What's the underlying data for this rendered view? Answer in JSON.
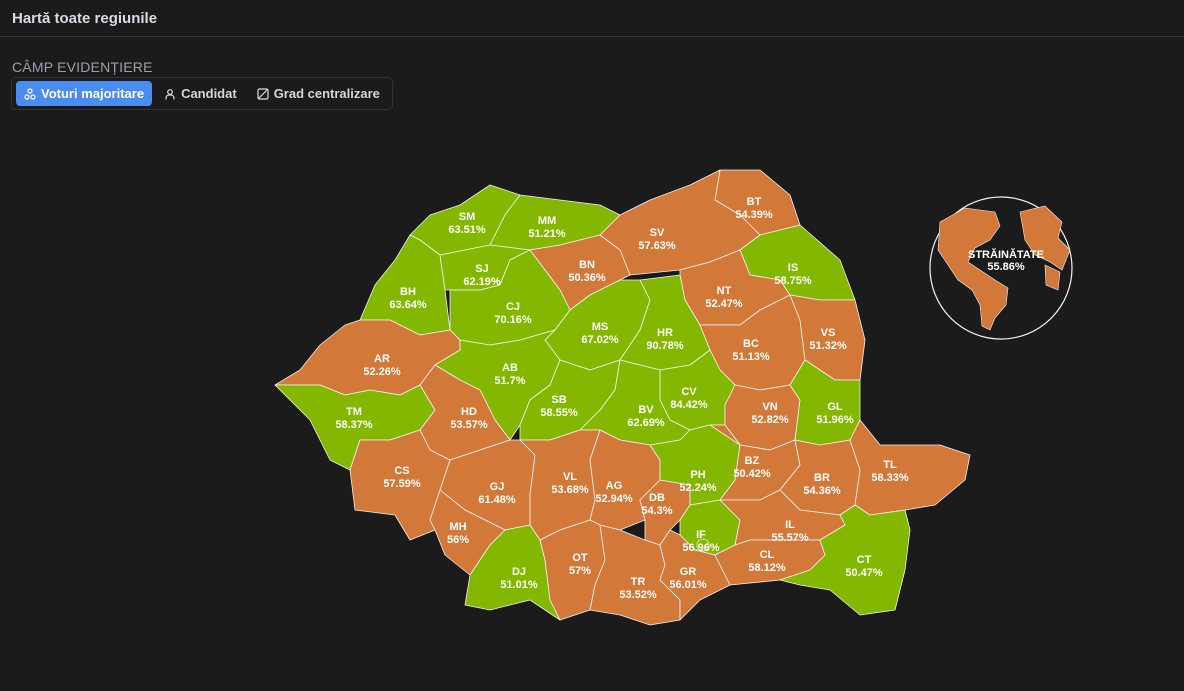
{
  "header": {
    "title": "Hartă toate regiunile"
  },
  "highlight": {
    "label": "CÂMP EVIDENȚIERE",
    "options": [
      {
        "label": "Voturi majoritare",
        "icon": "nodes-icon",
        "active": true
      },
      {
        "label": "Candidat",
        "icon": "user-icon",
        "active": false
      },
      {
        "label": "Grad centralizare",
        "icon": "square-slash-icon",
        "active": false
      }
    ]
  },
  "colors": {
    "green": "#84b800",
    "orange": "#d2793a",
    "border": "#f2f2f2"
  },
  "regions": [
    {
      "code": "SM",
      "value": "63.51%",
      "winner": "green"
    },
    {
      "code": "MM",
      "value": "51.21%",
      "winner": "green"
    },
    {
      "code": "BT",
      "value": "54.39%",
      "winner": "orange"
    },
    {
      "code": "SV",
      "value": "57.63%",
      "winner": "orange"
    },
    {
      "code": "BN",
      "value": "50.36%",
      "winner": "orange"
    },
    {
      "code": "IS",
      "value": "58.75%",
      "winner": "green"
    },
    {
      "code": "NT",
      "value": "52.47%",
      "winner": "orange"
    },
    {
      "code": "BH",
      "value": "63.64%",
      "winner": "green"
    },
    {
      "code": "SJ",
      "value": "62.19%",
      "winner": "green"
    },
    {
      "code": "CJ",
      "value": "70.16%",
      "winner": "green"
    },
    {
      "code": "MS",
      "value": "67.02%",
      "winner": "green"
    },
    {
      "code": "HR",
      "value": "90.78%",
      "winner": "green"
    },
    {
      "code": "BC",
      "value": "51.13%",
      "winner": "orange"
    },
    {
      "code": "VS",
      "value": "51.32%",
      "winner": "orange"
    },
    {
      "code": "AR",
      "value": "52.26%",
      "winner": "orange"
    },
    {
      "code": "AB",
      "value": "51.7%",
      "winner": "green"
    },
    {
      "code": "TM",
      "value": "58.37%",
      "winner": "green"
    },
    {
      "code": "HD",
      "value": "53.57%",
      "winner": "orange"
    },
    {
      "code": "SB",
      "value": "58.55%",
      "winner": "green"
    },
    {
      "code": "CV",
      "value": "84.42%",
      "winner": "green"
    },
    {
      "code": "BV",
      "value": "62.69%",
      "winner": "green"
    },
    {
      "code": "VN",
      "value": "52.82%",
      "winner": "orange"
    },
    {
      "code": "GL",
      "value": "51.96%",
      "winner": "green"
    },
    {
      "code": "CS",
      "value": "57.59%",
      "winner": "orange"
    },
    {
      "code": "GJ",
      "value": "61.48%",
      "winner": "orange"
    },
    {
      "code": "VL",
      "value": "53.68%",
      "winner": "orange"
    },
    {
      "code": "AG",
      "value": "52.94%",
      "winner": "orange"
    },
    {
      "code": "DB",
      "value": "54.3%",
      "winner": "orange"
    },
    {
      "code": "PH",
      "value": "52.24%",
      "winner": "green"
    },
    {
      "code": "BZ",
      "value": "50.42%",
      "winner": "orange"
    },
    {
      "code": "BR",
      "value": "54.36%",
      "winner": "orange"
    },
    {
      "code": "TL",
      "value": "58.33%",
      "winner": "orange"
    },
    {
      "code": "MH",
      "value": "56%",
      "winner": "orange"
    },
    {
      "code": "DJ",
      "value": "51.01%",
      "winner": "green"
    },
    {
      "code": "OT",
      "value": "57%",
      "winner": "orange"
    },
    {
      "code": "TR",
      "value": "53.52%",
      "winner": "orange"
    },
    {
      "code": "IF",
      "value": "56.96%",
      "winner": "green"
    },
    {
      "code": "GR",
      "value": "56.01%",
      "winner": "orange"
    },
    {
      "code": "IL",
      "value": "55.57%",
      "winner": "orange"
    },
    {
      "code": "CL",
      "value": "58.12%",
      "winner": "orange"
    },
    {
      "code": "CT",
      "value": "50.47%",
      "winner": "green"
    }
  ],
  "abroad": {
    "label": "STRĂINĂTATE",
    "value": "55.86%",
    "winner": "orange"
  }
}
